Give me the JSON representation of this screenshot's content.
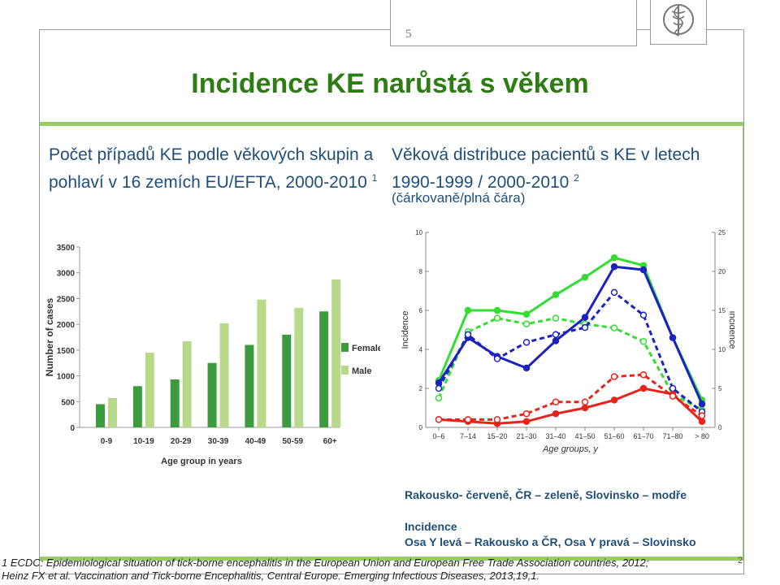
{
  "slide_number": "5",
  "page_number": "2",
  "title": "Incidence KE narůstá s věkem",
  "left_heading": {
    "text": "Počet případů KE podle věkových skupin a pohlaví v 16 zemích EU/EFTA, 2000-2010",
    "sup": "1"
  },
  "right_heading": {
    "text": "Věková distribuce pacientů s KE v letech 1990-1999 / 2000-2010",
    "sup": "2",
    "sub": "(čárkovaně/plná čára)"
  },
  "legend_note": {
    "line1": "Rakousko- červeně, ČR – zeleně, Slovinsko – modře",
    "line2": "Incidence",
    "line3": "Osa Y levá – Rakousko a ČR, Osa Y pravá – Slovinsko"
  },
  "footnote1": "1 ECDC: Epidemiological situation of tick-borne encephalitis in the European Union and European Free Trade Association countries, 2012;",
  "footnote2": "Heinz FX et al. Vaccination and Tick-borne Encephalitis, Central Europe. Emerging Infectious Diseases, 2013,19,1.",
  "colors": {
    "female": "#3d9b3d",
    "male": "#b8d98a",
    "austria": "#e8231c",
    "czech": "#33dd33",
    "slovenia": "#1c22bf",
    "title": "#2e7d14",
    "heading": "#1f4e79"
  },
  "chart_data": [
    {
      "type": "bar",
      "categories": [
        "0-9",
        "10-19",
        "20-29",
        "30-39",
        "40-49",
        "50-59",
        "60+"
      ],
      "series": [
        {
          "name": "Female",
          "values": [
            450,
            800,
            930,
            1250,
            1600,
            1800,
            2250
          ]
        },
        {
          "name": "Male",
          "values": [
            570,
            1450,
            1670,
            2020,
            2480,
            2320,
            2870
          ]
        }
      ],
      "xlabel": "Age group in years",
      "ylabel": "Number of cases",
      "ylim": [
        0,
        3500
      ],
      "yticks": [
        "0",
        "500",
        "1000",
        "1500",
        "2000",
        "2500",
        "3000",
        "3500"
      ],
      "legend": "right"
    },
    {
      "type": "line",
      "categories": [
        "0–6",
        "7–14",
        "15–20",
        "21–30",
        "31–40",
        "41–50",
        "51–60",
        "61–70",
        "71–80",
        "> 80"
      ],
      "xlabel": "Age groups, y",
      "ylabel_left": "Incidence",
      "ylabel_right": "Incidence",
      "ylim_left": [
        0,
        10
      ],
      "ylim_right": [
        0,
        25
      ],
      "yticks_left": [
        "0",
        "2",
        "4",
        "6",
        "8",
        "10"
      ],
      "yticks_right": [
        "0",
        "5",
        "10",
        "15",
        "20",
        "25"
      ],
      "series": [
        {
          "country": "czech",
          "period": "2000-2010",
          "axis": "left",
          "style": "solid",
          "values": [
            2.4,
            6.0,
            6.0,
            5.8,
            6.8,
            7.7,
            8.7,
            8.3,
            4.6,
            1.4
          ]
        },
        {
          "country": "czech",
          "period": "1990-1999",
          "axis": "left",
          "style": "dashed",
          "values": [
            1.5,
            4.9,
            5.6,
            5.3,
            5.6,
            5.3,
            5.1,
            4.4,
            1.7,
            0.9
          ]
        },
        {
          "country": "slovenia",
          "period": "2000-2010",
          "axis": "right",
          "style": "solid",
          "values": [
            5.7,
            11.5,
            9.1,
            7.6,
            11.1,
            14.1,
            20.6,
            20.2,
            11.5,
            3.0
          ]
        },
        {
          "country": "slovenia",
          "period": "1990-1999",
          "axis": "right",
          "style": "dashed",
          "values": [
            5.0,
            11.9,
            8.8,
            10.9,
            11.9,
            12.8,
            17.3,
            14.4,
            5.0,
            2.0
          ]
        },
        {
          "country": "austria",
          "period": "2000-2010",
          "axis": "left",
          "style": "solid",
          "values": [
            0.4,
            0.3,
            0.2,
            0.3,
            0.7,
            1.0,
            1.4,
            2.0,
            1.7,
            0.3
          ]
        },
        {
          "country": "austria",
          "period": "1990-1999",
          "axis": "left",
          "style": "dashed",
          "values": [
            0.4,
            0.4,
            0.4,
            0.7,
            1.3,
            1.3,
            2.6,
            2.7,
            1.6,
            0.6
          ]
        }
      ]
    }
  ]
}
